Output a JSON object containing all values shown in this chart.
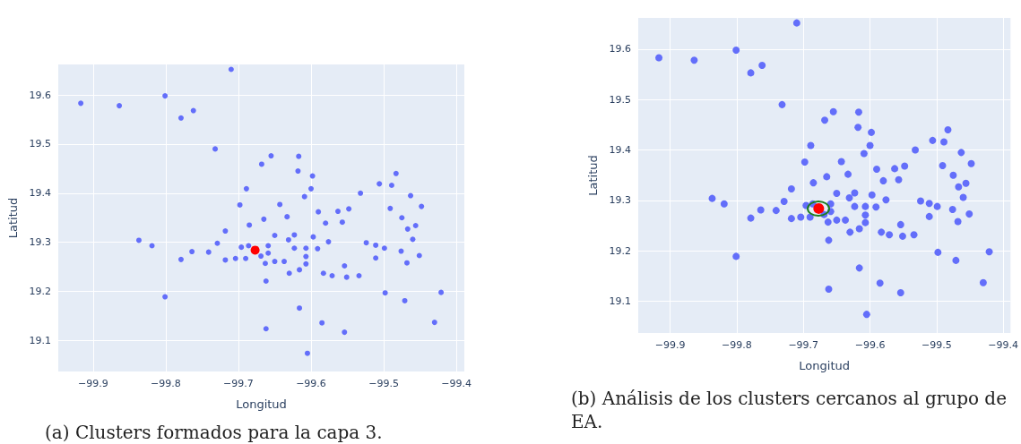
{
  "chart_data": [
    {
      "type": "scatter",
      "xlabel": "Longitud",
      "ylabel": "Latitud",
      "annotations": [
        "(a) Clusters formados para la capa 3."
      ],
      "xlim": [
        -99.948,
        -99.389
      ],
      "ylim": [
        19.037,
        19.662
      ],
      "xticks": [
        {
          "value": -99.9,
          "label": "−99.9"
        },
        {
          "value": -99.8,
          "label": "−99.8"
        },
        {
          "value": -99.7,
          "label": "−99.7"
        },
        {
          "value": -99.6,
          "label": "−99.6"
        },
        {
          "value": -99.5,
          "label": "−99.5"
        },
        {
          "value": -99.4,
          "label": "−99.4"
        }
      ],
      "yticks": [
        19.1,
        19.2,
        19.3,
        19.4,
        19.5,
        19.6
      ],
      "grid": true,
      "marker": "circle",
      "series": [
        {
          "color": "#636efa",
          "x": [
            -99.917,
            -99.864,
            -99.801,
            -99.779,
            -99.762,
            -99.71,
            -99.732,
            -99.689,
            -99.698,
            -99.685,
            -99.718,
            -99.837,
            -99.819,
            -99.764,
            -99.741,
            -99.729,
            -99.779,
            -99.718,
            -99.704,
            -99.69,
            -99.696,
            -99.686,
            -99.669,
            -99.801,
            -99.655,
            -99.617,
            -99.668,
            -99.618,
            -99.598,
            -99.6,
            -99.609,
            -99.643,
            -99.633,
            -99.665,
            -99.59,
            -99.563,
            -99.548,
            -99.58,
            -99.557,
            -99.532,
            -99.506,
            -99.489,
            -99.483,
            -99.463,
            -99.491,
            -99.448,
            -99.475,
            -99.467,
            -99.456,
            -99.46,
            -99.65,
            -99.623,
            -99.631,
            -99.597,
            -99.576,
            -99.524,
            -99.511,
            -99.499,
            -99.476,
            -99.451,
            -99.511,
            -99.468,
            -99.659,
            -99.659,
            -99.663,
            -99.65,
            -99.637,
            -99.623,
            -99.607,
            -99.591,
            -99.607,
            -99.607,
            -99.616,
            -99.63,
            -99.662,
            -99.583,
            -99.571,
            -99.554,
            -99.551,
            -99.534,
            -99.498,
            -99.471,
            -99.421,
            -99.616,
            -99.585,
            -99.43,
            -99.662,
            -99.554,
            -99.605
          ],
          "values": [
            19.583,
            19.578,
            19.598,
            19.553,
            19.568,
            19.652,
            19.49,
            19.409,
            19.376,
            19.335,
            19.323,
            19.304,
            19.293,
            19.281,
            19.28,
            19.298,
            19.265,
            19.264,
            19.267,
            19.267,
            19.29,
            19.293,
            19.272,
            19.189,
            19.476,
            19.475,
            19.459,
            19.445,
            19.435,
            19.409,
            19.393,
            19.377,
            19.352,
            19.347,
            19.362,
            19.363,
            19.368,
            19.339,
            19.341,
            19.4,
            19.419,
            19.416,
            19.44,
            19.395,
            19.369,
            19.373,
            19.35,
            19.327,
            19.334,
            19.306,
            19.314,
            19.315,
            19.305,
            19.311,
            19.301,
            19.299,
            19.294,
            19.288,
            19.282,
            19.273,
            19.268,
            19.258,
            19.293,
            19.278,
            19.257,
            19.261,
            19.261,
            19.288,
            19.288,
            19.287,
            19.271,
            19.256,
            19.244,
            19.237,
            19.221,
            19.237,
            19.232,
            19.252,
            19.229,
            19.232,
            19.197,
            19.181,
            19.198,
            19.166,
            19.136,
            19.137,
            19.124,
            19.117,
            19.074
          ]
        },
        {
          "color": "#ff0000",
          "x": [
            -99.677
          ],
          "values": [
            19.284
          ]
        }
      ]
    },
    {
      "type": "scatter",
      "xlabel": "Longitud",
      "ylabel": "Latitud",
      "annotations": [
        "(b) Análisis de los clusters cercanos al grupo de EA."
      ],
      "xlim": [
        -99.948,
        -99.389
      ],
      "ylim": [
        19.037,
        19.662
      ],
      "xticks": [
        {
          "value": -99.9,
          "label": "−99.9"
        },
        {
          "value": -99.8,
          "label": "−99.8"
        },
        {
          "value": -99.7,
          "label": "−99.7"
        },
        {
          "value": -99.6,
          "label": "−99.6"
        },
        {
          "value": -99.5,
          "label": "−99.5"
        },
        {
          "value": -99.4,
          "label": "−99.4"
        }
      ],
      "yticks": [
        19.1,
        19.2,
        19.3,
        19.4,
        19.5,
        19.6
      ],
      "grid": true,
      "marker": "circle",
      "series": [
        {
          "color": "#636efa",
          "x": [
            -99.917,
            -99.864,
            -99.801,
            -99.779,
            -99.762,
            -99.71,
            -99.732,
            -99.689,
            -99.698,
            -99.685,
            -99.718,
            -99.837,
            -99.819,
            -99.764,
            -99.741,
            -99.729,
            -99.779,
            -99.718,
            -99.704,
            -99.69,
            -99.696,
            -99.686,
            -99.669,
            -99.801,
            -99.655,
            -99.617,
            -99.668,
            -99.618,
            -99.598,
            -99.6,
            -99.609,
            -99.643,
            -99.633,
            -99.665,
            -99.59,
            -99.563,
            -99.548,
            -99.58,
            -99.557,
            -99.532,
            -99.506,
            -99.489,
            -99.483,
            -99.463,
            -99.491,
            -99.448,
            -99.475,
            -99.467,
            -99.456,
            -99.46,
            -99.65,
            -99.623,
            -99.631,
            -99.597,
            -99.576,
            -99.524,
            -99.511,
            -99.499,
            -99.476,
            -99.451,
            -99.511,
            -99.468,
            -99.659,
            -99.659,
            -99.663,
            -99.65,
            -99.637,
            -99.623,
            -99.607,
            -99.591,
            -99.607,
            -99.607,
            -99.616,
            -99.63,
            -99.662,
            -99.583,
            -99.571,
            -99.554,
            -99.551,
            -99.534,
            -99.498,
            -99.471,
            -99.421,
            -99.616,
            -99.585,
            -99.43,
            -99.662,
            -99.554,
            -99.605
          ],
          "values": [
            19.583,
            19.578,
            19.598,
            19.553,
            19.568,
            19.652,
            19.49,
            19.409,
            19.376,
            19.335,
            19.323,
            19.304,
            19.293,
            19.281,
            19.28,
            19.298,
            19.265,
            19.264,
            19.267,
            19.267,
            19.29,
            19.293,
            19.272,
            19.189,
            19.476,
            19.475,
            19.459,
            19.445,
            19.435,
            19.409,
            19.393,
            19.377,
            19.352,
            19.347,
            19.362,
            19.363,
            19.368,
            19.339,
            19.341,
            19.4,
            19.419,
            19.416,
            19.44,
            19.395,
            19.369,
            19.373,
            19.35,
            19.327,
            19.334,
            19.306,
            19.314,
            19.315,
            19.305,
            19.311,
            19.301,
            19.299,
            19.294,
            19.288,
            19.282,
            19.273,
            19.268,
            19.258,
            19.293,
            19.278,
            19.257,
            19.261,
            19.261,
            19.288,
            19.288,
            19.287,
            19.271,
            19.256,
            19.244,
            19.237,
            19.221,
            19.237,
            19.232,
            19.252,
            19.229,
            19.232,
            19.197,
            19.181,
            19.198,
            19.166,
            19.136,
            19.137,
            19.124,
            19.117,
            19.074
          ]
        },
        {
          "color": "#ff0000",
          "x": [
            -99.677
          ],
          "values": [
            19.284
          ]
        }
      ]
    }
  ]
}
